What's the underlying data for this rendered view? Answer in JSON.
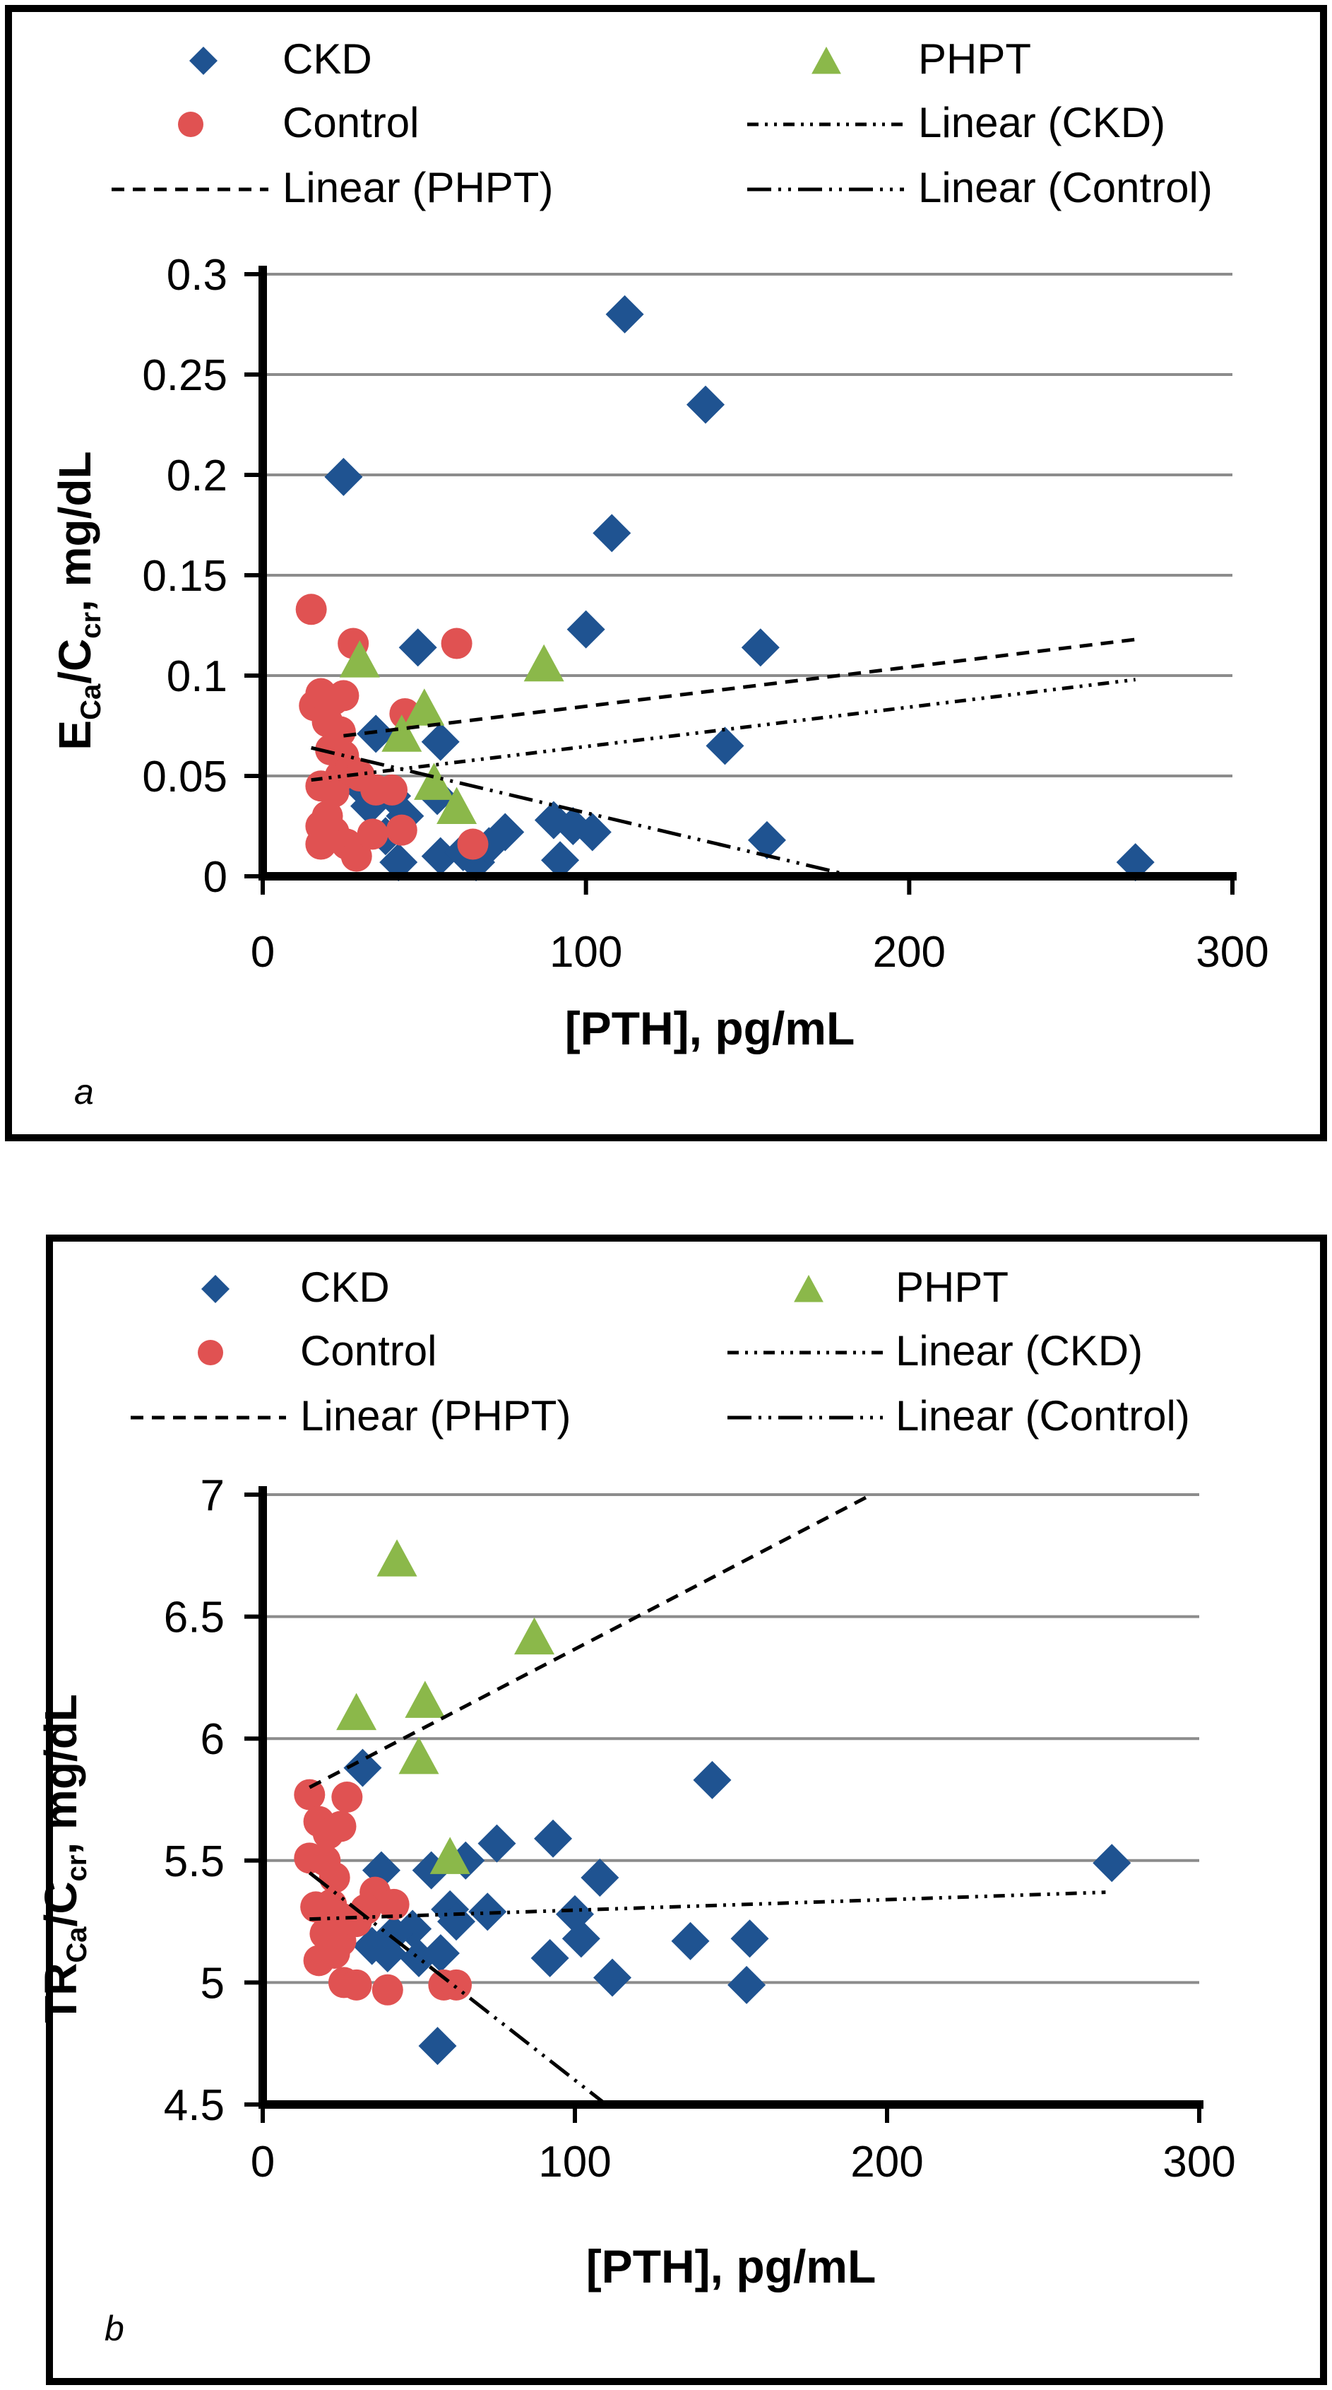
{
  "colors": {
    "ckd": "#1f5391",
    "control": "#e05252",
    "phpt": "#8bb84a",
    "grid": "#8c8c8c",
    "axis": "#000000"
  },
  "legend": {
    "ckd": "CKD",
    "phpt": "PHPT",
    "control": "Control",
    "linear_ckd": "Linear (CKD)",
    "linear_phpt": "Linear (PHPT)",
    "linear_control": "Linear (Control)"
  },
  "chart_data": [
    {
      "type": "scatter",
      "panel_label": "a",
      "xlabel": "[PTH], pg/mL",
      "ylabel": {
        "main": "E",
        "sub1": "Ca",
        "mid": "/C",
        "sub2": "cr",
        "tail": ", mg/dL"
      },
      "xlim": [
        0,
        300
      ],
      "ylim": [
        0,
        0.3
      ],
      "xticks": [
        0,
        100,
        200,
        300
      ],
      "yticks": [
        0,
        0.05,
        0.1,
        0.15,
        0.2,
        0.25,
        0.3
      ],
      "xtick_labels": [
        "0",
        "100",
        "200",
        "300"
      ],
      "ytick_labels": [
        "0",
        "0.05",
        "0.1",
        "0.15",
        "0.2",
        "0.25",
        "0.3"
      ],
      "grid": true,
      "series": [
        {
          "name": "CKD",
          "marker": "diamond",
          "points": [
            [
              25,
              0.199
            ],
            [
              112,
              0.28
            ],
            [
              137,
              0.235
            ],
            [
              108,
              0.171
            ],
            [
              100,
              0.123
            ],
            [
              154,
              0.114
            ],
            [
              48,
              0.114
            ],
            [
              143,
              0.065
            ],
            [
              55,
              0.067
            ],
            [
              35,
              0.071
            ],
            [
              30,
              0.045
            ],
            [
              33,
              0.035
            ],
            [
              40,
              0.04
            ],
            [
              54,
              0.04
            ],
            [
              44,
              0.03
            ],
            [
              42,
              0.007
            ],
            [
              55,
              0.01
            ],
            [
              62,
              0.012
            ],
            [
              66,
              0.007
            ],
            [
              70,
              0.015
            ],
            [
              75,
              0.022
            ],
            [
              90,
              0.028
            ],
            [
              96,
              0.025
            ],
            [
              102,
              0.022
            ],
            [
              92,
              0.008
            ],
            [
              156,
              0.018
            ],
            [
              270,
              0.007
            ],
            [
              38,
              0.02
            ]
          ]
        },
        {
          "name": "Control",
          "marker": "circle",
          "points": [
            [
              15,
              0.133
            ],
            [
              28,
              0.116
            ],
            [
              60,
              0.116
            ],
            [
              16,
              0.085
            ],
            [
              18,
              0.091
            ],
            [
              22,
              0.088
            ],
            [
              25,
              0.09
            ],
            [
              20,
              0.077
            ],
            [
              24,
              0.072
            ],
            [
              21,
              0.063
            ],
            [
              25,
              0.06
            ],
            [
              18,
              0.045
            ],
            [
              22,
              0.042
            ],
            [
              24,
              0.05
            ],
            [
              27,
              0.053
            ],
            [
              30,
              0.05
            ],
            [
              35,
              0.043
            ],
            [
              40,
              0.043
            ],
            [
              44,
              0.081
            ],
            [
              18,
              0.025
            ],
            [
              22,
              0.022
            ],
            [
              18,
              0.016
            ],
            [
              26,
              0.016
            ],
            [
              29,
              0.01
            ],
            [
              34,
              0.021
            ],
            [
              43,
              0.023
            ],
            [
              65,
              0.016
            ],
            [
              20,
              0.03
            ]
          ]
        },
        {
          "name": "PHPT",
          "marker": "triangle",
          "points": [
            [
              30,
              0.107
            ],
            [
              87,
              0.105
            ],
            [
              50,
              0.083
            ],
            [
              43,
              0.07
            ],
            [
              53,
              0.046
            ],
            [
              60,
              0.034
            ]
          ]
        }
      ],
      "trendlines": [
        {
          "name": "Linear (CKD)",
          "style": "dash-dot-dot",
          "from": [
            15,
            0.048
          ],
          "to": [
            270,
            0.098
          ]
        },
        {
          "name": "Linear (PHPT)",
          "style": "dash",
          "from": [
            25,
            0.07
          ],
          "to": [
            270,
            0.118
          ]
        },
        {
          "name": "Linear (Control)",
          "style": "long-dash-dot",
          "from": [
            15,
            0.064
          ],
          "to": [
            183,
            0.0
          ]
        }
      ]
    },
    {
      "type": "scatter",
      "panel_label": "b",
      "xlabel": "[PTH], pg/mL",
      "ylabel": {
        "main": "TR",
        "sub1": "Ca",
        "mid": "/C",
        "sub2": "cr",
        "tail": ", mg/dL"
      },
      "xlim": [
        0,
        300
      ],
      "ylim": [
        4.5,
        7
      ],
      "xticks": [
        0,
        100,
        200,
        300
      ],
      "yticks": [
        4.5,
        5,
        5.5,
        6,
        6.5,
        7
      ],
      "xtick_labels": [
        "0",
        "100",
        "200",
        "300"
      ],
      "ytick_labels": [
        "4.5",
        "5",
        "5.5",
        "6",
        "6.5",
        "7"
      ],
      "grid": true,
      "series": [
        {
          "name": "CKD",
          "marker": "diamond",
          "points": [
            [
              32,
              5.88
            ],
            [
              144,
              5.83
            ],
            [
              272,
              5.49
            ],
            [
              93,
              5.59
            ],
            [
              75,
              5.57
            ],
            [
              65,
              5.5
            ],
            [
              108,
              5.43
            ],
            [
              38,
              5.46
            ],
            [
              54,
              5.46
            ],
            [
              72,
              5.29
            ],
            [
              100,
              5.28
            ],
            [
              60,
              5.3
            ],
            [
              48,
              5.22
            ],
            [
              42,
              5.2
            ],
            [
              35,
              5.15
            ],
            [
              40,
              5.12
            ],
            [
              50,
              5.1
            ],
            [
              57,
              5.12
            ],
            [
              102,
              5.18
            ],
            [
              137,
              5.17
            ],
            [
              156,
              5.18
            ],
            [
              92,
              5.1
            ],
            [
              112,
              5.02
            ],
            [
              155,
              4.99
            ],
            [
              56,
              4.74
            ],
            [
              62,
              5.25
            ]
          ]
        },
        {
          "name": "Control",
          "marker": "circle",
          "points": [
            [
              15,
              5.77
            ],
            [
              18,
              5.66
            ],
            [
              21,
              5.61
            ],
            [
              25,
              5.64
            ],
            [
              27,
              5.76
            ],
            [
              15,
              5.51
            ],
            [
              20,
              5.5
            ],
            [
              23,
              5.43
            ],
            [
              17,
              5.31
            ],
            [
              22,
              5.32
            ],
            [
              26,
              5.26
            ],
            [
              20,
              5.2
            ],
            [
              25,
              5.17
            ],
            [
              18,
              5.09
            ],
            [
              23,
              5.12
            ],
            [
              30,
              5.25
            ],
            [
              36,
              5.37
            ],
            [
              42,
              5.32
            ],
            [
              33,
              5.3
            ],
            [
              26,
              5.0
            ],
            [
              30,
              4.99
            ],
            [
              40,
              4.97
            ],
            [
              58,
              4.99
            ],
            [
              62,
              4.99
            ],
            [
              22,
              5.28
            ]
          ]
        },
        {
          "name": "PHPT",
          "marker": "triangle",
          "points": [
            [
              43,
              6.73
            ],
            [
              87,
              6.41
            ],
            [
              30,
              6.1
            ],
            [
              52,
              6.15
            ],
            [
              50,
              5.92
            ],
            [
              60,
              5.51
            ]
          ]
        }
      ],
      "trendlines": [
        {
          "name": "Linear (CKD)",
          "style": "dash-dot-dot",
          "from": [
            15,
            5.26
          ],
          "to": [
            270,
            5.37
          ]
        },
        {
          "name": "Linear (PHPT)",
          "style": "dash",
          "from": [
            15,
            5.8
          ],
          "to": [
            195,
            7.0
          ]
        },
        {
          "name": "Linear (Control)",
          "style": "long-dash-dot",
          "from": [
            15,
            5.45
          ],
          "to": [
            110,
            4.5
          ]
        }
      ]
    }
  ]
}
